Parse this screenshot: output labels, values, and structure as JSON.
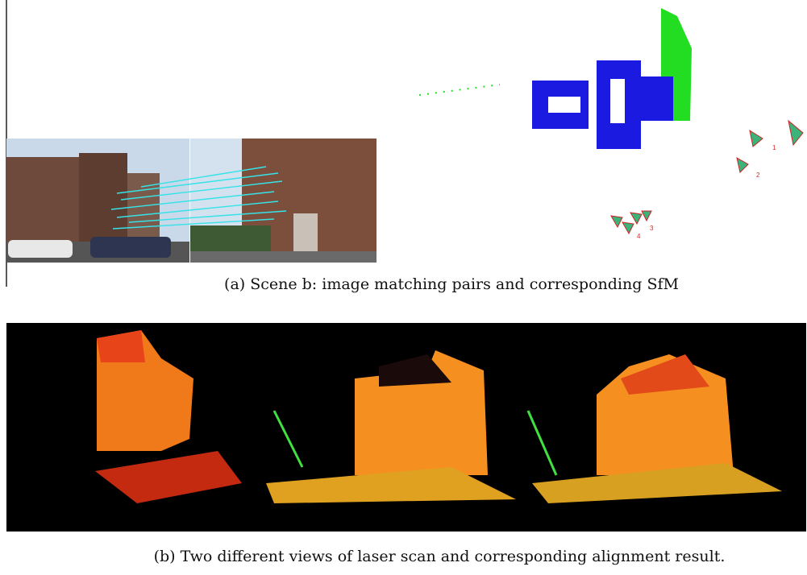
{
  "figure": {
    "panel_a": {
      "caption": "(a) Scene b: image matching pairs and corresponding SfM",
      "camera_labels": [
        "1",
        "2",
        "3",
        "4"
      ]
    },
    "panel_b": {
      "caption": "(b) Two different views of laser scan and corresponding alignment result."
    }
  }
}
